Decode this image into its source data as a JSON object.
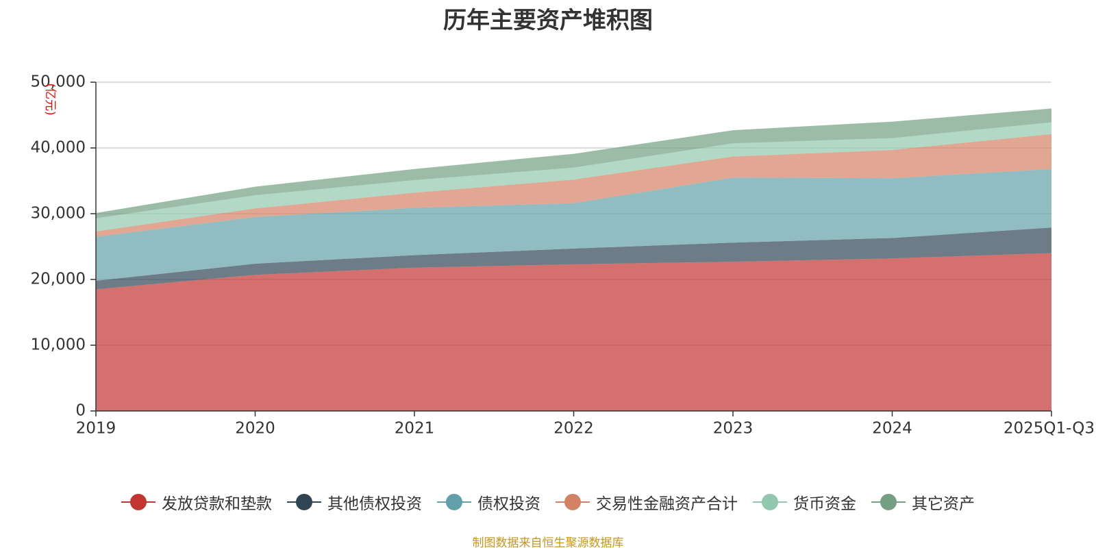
{
  "chart_data": {
    "type": "area",
    "stacked": true,
    "title": "历年主要资产堆积图",
    "ylabel": "(亿元)",
    "xlabel": "",
    "categories": [
      "2019",
      "2020",
      "2021",
      "2022",
      "2023",
      "2024",
      "2025Q1-Q3"
    ],
    "ylim": [
      0,
      50000
    ],
    "yticks": [
      0,
      10000,
      20000,
      30000,
      40000,
      50000
    ],
    "ytick_labels": [
      "0",
      "10,000",
      "20,000",
      "30,000",
      "40,000",
      "50,000"
    ],
    "grid": true,
    "legend_position": "bottom",
    "series": [
      {
        "name": "发放贷款和垫款",
        "color": "#c23531",
        "values": [
          18500,
          20700,
          21800,
          22300,
          22700,
          23200,
          24000
        ]
      },
      {
        "name": "其他债权投资",
        "color": "#2f4554",
        "values": [
          1300,
          1700,
          1900,
          2400,
          2900,
          3100,
          3900
        ]
      },
      {
        "name": "债权投资",
        "color": "#61a0a8",
        "values": [
          6700,
          7100,
          7200,
          6900,
          9900,
          9100,
          8900
        ]
      },
      {
        "name": "交易性金融资产合计",
        "color": "#d48265",
        "values": [
          800,
          1300,
          2300,
          3600,
          3200,
          4300,
          5300
        ]
      },
      {
        "name": "货币资金",
        "color": "#91c7ae",
        "values": [
          2000,
          2000,
          1900,
          1800,
          2000,
          1800,
          1800
        ]
      },
      {
        "name": "其它资产",
        "color": "#749f83",
        "values": [
          800,
          1300,
          1700,
          2100,
          2000,
          2500,
          2100
        ]
      }
    ]
  },
  "footer": {
    "source": "制图数据来自恒生聚源数据库"
  }
}
